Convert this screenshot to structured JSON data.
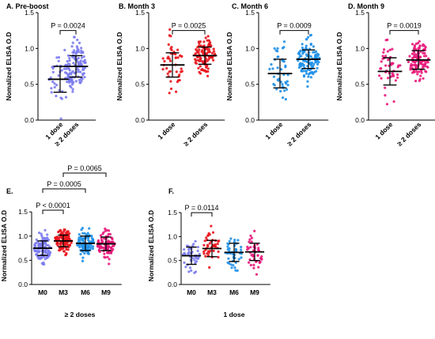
{
  "chart_data": [
    {
      "type": "scatter",
      "title": "A. Pre-boost",
      "ylabel": "Nomalized ELISA O.D",
      "xlabel": "",
      "ylim": [
        0,
        1.5
      ],
      "yticks": [
        "0.0",
        "0.5",
        "1.0",
        "1.5"
      ],
      "categories": [
        "1 dose",
        "≥ 2 doses"
      ],
      "series": [
        {
          "category": "1 dose",
          "color": "#7b7bf0",
          "n": 45,
          "mean": 0.57,
          "sd": 0.18,
          "ci": [
            0.5,
            0.64
          ]
        },
        {
          "category": "≥ 2 doses",
          "color": "#7b7bf0",
          "n": 110,
          "mean": 0.75,
          "sd": 0.15,
          "ci": [
            0.7,
            0.8
          ]
        }
      ],
      "comparisons": [
        {
          "from": 0,
          "to": 1,
          "label": "P = 0.0024",
          "y": 1.25
        }
      ]
    },
    {
      "type": "scatter",
      "title": "B. Month 3",
      "ylabel": "Nomalized ELISA O.D",
      "xlabel": "",
      "ylim": [
        0,
        1.5
      ],
      "yticks": [
        "0.0",
        "0.5",
        "1.0",
        "1.5"
      ],
      "categories": [
        "1 dose",
        "≥ 2 doses"
      ],
      "series": [
        {
          "category": "1 dose",
          "color": "#e8141c",
          "n": 45,
          "mean": 0.77,
          "sd": 0.17,
          "ci": [
            0.7,
            0.84
          ]
        },
        {
          "category": "≥ 2 doses",
          "color": "#e8141c",
          "n": 110,
          "mean": 0.9,
          "sd": 0.12,
          "ci": [
            0.86,
            0.94
          ]
        }
      ],
      "comparisons": [
        {
          "from": 0,
          "to": 1,
          "label": "P = 0.0025",
          "y": 1.25
        }
      ]
    },
    {
      "type": "scatter",
      "title": "C. Month 6",
      "ylabel": "Nomalized ELISA O.D",
      "xlabel": "",
      "ylim": [
        0,
        1.5
      ],
      "yticks": [
        "0.0",
        "0.5",
        "1.0",
        "1.5"
      ],
      "categories": [
        "1 dose",
        "≥ 2 doses"
      ],
      "series": [
        {
          "category": "1 dose",
          "color": "#1e90e8",
          "n": 45,
          "mean": 0.65,
          "sd": 0.2,
          "ci": [
            0.57,
            0.73
          ]
        },
        {
          "category": "≥ 2 doses",
          "color": "#1e90e8",
          "n": 110,
          "mean": 0.85,
          "sd": 0.13,
          "ci": [
            0.81,
            0.89
          ]
        }
      ],
      "comparisons": [
        {
          "from": 0,
          "to": 1,
          "label": "P = 0.0009",
          "y": 1.25
        }
      ]
    },
    {
      "type": "scatter",
      "title": "D. Month 9",
      "ylabel": "Nomalized ELISA O.D",
      "xlabel": "",
      "ylim": [
        0,
        1.5
      ],
      "yticks": [
        "0.0",
        "0.5",
        "1.0",
        "1.5"
      ],
      "categories": [
        "1 dose",
        "≥ 2 doses"
      ],
      "series": [
        {
          "category": "1 dose",
          "color": "#e8187a",
          "n": 45,
          "mean": 0.68,
          "sd": 0.19,
          "ci": [
            0.6,
            0.76
          ]
        },
        {
          "category": "≥ 2 doses",
          "color": "#e8187a",
          "n": 110,
          "mean": 0.84,
          "sd": 0.13,
          "ci": [
            0.8,
            0.88
          ]
        }
      ],
      "comparisons": [
        {
          "from": 0,
          "to": 1,
          "label": "P = 0.0019",
          "y": 1.25
        }
      ]
    },
    {
      "type": "scatter",
      "title": "E.",
      "ylabel": "Normalized ELISA O.D",
      "xlabel": "≥ 2 doses",
      "ylim": [
        0,
        1.6
      ],
      "yticks": [
        "0.0",
        "0.5",
        "1.0",
        "1.5"
      ],
      "categories": [
        "M0",
        "M3",
        "M6",
        "M9"
      ],
      "series": [
        {
          "category": "M0",
          "color": "#7b7bf0",
          "n": 110,
          "mean": 0.75,
          "sd": 0.15,
          "ci": [
            0.7,
            0.8
          ]
        },
        {
          "category": "M3",
          "color": "#e8141c",
          "n": 110,
          "mean": 0.9,
          "sd": 0.12,
          "ci": [
            0.86,
            0.94
          ]
        },
        {
          "category": "M6",
          "color": "#1e90e8",
          "n": 90,
          "mean": 0.85,
          "sd": 0.15,
          "ci": [
            0.8,
            0.9
          ]
        },
        {
          "category": "M9",
          "color": "#e8187a",
          "n": 90,
          "mean": 0.84,
          "sd": 0.14,
          "ci": [
            0.8,
            0.88
          ]
        }
      ],
      "comparisons": [
        {
          "from": 0,
          "to": 1,
          "label": "P < 0.0001",
          "y": 1.55
        },
        {
          "from": 0,
          "to": 2,
          "label": "P = 0.0005",
          "y": 1.88
        },
        {
          "from": 1,
          "to": 3,
          "label": "P = 0.0065",
          "y": 2.2
        }
      ]
    },
    {
      "type": "scatter",
      "title": "F.",
      "ylabel": "Normalized ELISA O.D",
      "xlabel": "1 dose",
      "ylim": [
        0,
        1.6
      ],
      "yticks": [
        "0.0",
        "0.5",
        "1.0",
        "1.5"
      ],
      "categories": [
        "M0",
        "M3",
        "M6",
        "M9"
      ],
      "series": [
        {
          "category": "M0",
          "color": "#7b7bf0",
          "n": 45,
          "mean": 0.6,
          "sd": 0.18,
          "ci": [
            0.53,
            0.67
          ]
        },
        {
          "category": "M3",
          "color": "#e8141c",
          "n": 45,
          "mean": 0.75,
          "sd": 0.17,
          "ci": [
            0.68,
            0.82
          ]
        },
        {
          "category": "M6",
          "color": "#1e90e8",
          "n": 45,
          "mean": 0.67,
          "sd": 0.19,
          "ci": [
            0.6,
            0.74
          ]
        },
        {
          "category": "M9",
          "color": "#e8187a",
          "n": 45,
          "mean": 0.68,
          "sd": 0.18,
          "ci": [
            0.61,
            0.75
          ]
        }
      ],
      "comparisons": [
        {
          "from": 0,
          "to": 1,
          "label": "P = 0.0114",
          "y": 1.5
        }
      ]
    }
  ]
}
